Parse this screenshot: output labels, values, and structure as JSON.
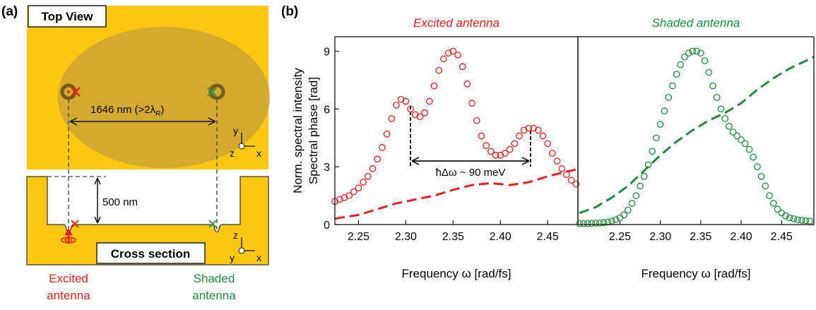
{
  "panel_labels": [
    "(a)",
    "(b)"
  ],
  "diagram": {
    "top_view": "Top View",
    "distance": [
      "1646 nm (>2λ",
      "R",
      ")"
    ],
    "depth": "500 nm",
    "cross_section": "Cross section",
    "axes_top": [
      "y",
      "z",
      "x"
    ],
    "axes_bottom": [
      "z",
      "y",
      "x"
    ],
    "excited": [
      "Excited",
      "antenna"
    ],
    "shaded": [
      "Shaded",
      "antenna"
    ]
  },
  "chart_data": [
    {
      "type": "scatter-line",
      "title": "Excited antenna",
      "title_color": "#e8201e",
      "x_label": "Frequency ω [rad/fs]",
      "y_label": [
        "Norm. spectral intensity",
        "Spectral phase [rad]"
      ],
      "annotation": "ħΔω ~ 90 meV",
      "xlim": [
        2.225,
        2.482
      ],
      "ylim": [
        0,
        9.75
      ],
      "xticks": [
        2.25,
        {
          "value": 2.3,
          "label": "2.30"
        },
        2.35,
        {
          "value": 2.4,
          "label": "2.40"
        },
        2.45
      ],
      "yticks": [
        0,
        3,
        6,
        9
      ],
      "series": [
        {
          "style": "markers",
          "color": "#e8201e",
          "x": [
            2.225,
            2.23,
            2.235,
            2.24,
            2.245,
            2.25,
            2.255,
            2.26,
            2.265,
            2.27,
            2.275,
            2.28,
            2.285,
            2.29,
            2.295,
            2.3,
            2.305,
            2.31,
            2.315,
            2.32,
            2.325,
            2.33,
            2.335,
            2.34,
            2.345,
            2.35,
            2.355,
            2.36,
            2.365,
            2.37,
            2.375,
            2.38,
            2.385,
            2.39,
            2.395,
            2.4,
            2.405,
            2.41,
            2.415,
            2.42,
            2.425,
            2.43,
            2.435,
            2.44,
            2.445,
            2.45,
            2.455,
            2.46,
            2.465,
            2.47,
            2.475,
            2.48
          ],
          "values": [
            1.2,
            1.3,
            1.4,
            1.5,
            1.7,
            1.9,
            2.2,
            2.5,
            2.9,
            3.4,
            4.0,
            4.7,
            5.5,
            6.2,
            6.5,
            6.4,
            6.0,
            5.7,
            5.6,
            5.8,
            6.4,
            7.2,
            8.0,
            8.6,
            8.9,
            9.0,
            8.8,
            8.2,
            7.3,
            6.3,
            5.4,
            4.6,
            4.1,
            3.8,
            3.6,
            3.6,
            3.7,
            3.9,
            4.2,
            4.6,
            4.9,
            5.0,
            5.0,
            4.9,
            4.6,
            4.2,
            3.7,
            3.3,
            2.9,
            2.6,
            2.3,
            2.1
          ]
        },
        {
          "style": "dashed",
          "color": "#e8201e",
          "x": [
            2.225,
            2.23,
            2.25,
            2.27,
            2.29,
            2.31,
            2.33,
            2.35,
            2.37,
            2.39,
            2.41,
            2.43,
            2.45,
            2.47,
            2.48
          ],
          "values": [
            0.3,
            0.35,
            0.5,
            0.8,
            1.1,
            1.3,
            1.5,
            1.8,
            2.05,
            2.15,
            2.05,
            2.2,
            2.5,
            2.75,
            2.85
          ]
        }
      ]
    },
    {
      "type": "scatter-line",
      "title": "Shaded antenna",
      "title_color": "#1e8c3a",
      "x_label": "Frequency ω [rad/fs]",
      "xlim": [
        2.198,
        2.49
      ],
      "ylim": [
        0,
        9.75
      ],
      "xticks": [
        2.25,
        {
          "value": 2.3,
          "label": "2.30"
        },
        2.35,
        {
          "value": 2.4,
          "label": "2.40"
        },
        2.45
      ],
      "series": [
        {
          "style": "markers",
          "color": "#1e8c3a",
          "x": [
            2.2,
            2.205,
            2.21,
            2.215,
            2.22,
            2.225,
            2.23,
            2.235,
            2.24,
            2.245,
            2.25,
            2.255,
            2.26,
            2.265,
            2.27,
            2.275,
            2.28,
            2.285,
            2.29,
            2.295,
            2.3,
            2.305,
            2.31,
            2.315,
            2.32,
            2.325,
            2.33,
            2.335,
            2.34,
            2.345,
            2.35,
            2.355,
            2.36,
            2.365,
            2.37,
            2.375,
            2.38,
            2.385,
            2.39,
            2.395,
            2.4,
            2.405,
            2.41,
            2.415,
            2.42,
            2.425,
            2.43,
            2.435,
            2.44,
            2.445,
            2.45,
            2.455,
            2.46,
            2.465,
            2.47,
            2.475,
            2.48,
            2.485
          ],
          "values": [
            0.05,
            0.05,
            0.05,
            0.06,
            0.07,
            0.08,
            0.1,
            0.13,
            0.18,
            0.25,
            0.35,
            0.5,
            0.75,
            1.1,
            1.5,
            2.0,
            2.5,
            3.1,
            3.8,
            4.5,
            5.2,
            5.9,
            6.6,
            7.2,
            7.8,
            8.3,
            8.7,
            8.9,
            9.0,
            9.0,
            8.9,
            8.5,
            7.9,
            7.2,
            6.6,
            6.0,
            5.5,
            5.1,
            4.8,
            4.6,
            4.4,
            4.2,
            3.9,
            3.5,
            3.0,
            2.5,
            2.0,
            1.5,
            1.1,
            0.8,
            0.6,
            0.45,
            0.35,
            0.3,
            0.25,
            0.22,
            0.2,
            0.18
          ]
        },
        {
          "style": "dashed",
          "color": "#1e8c3a",
          "x": [
            2.2,
            2.22,
            2.24,
            2.26,
            2.28,
            2.3,
            2.32,
            2.34,
            2.36,
            2.38,
            2.4,
            2.42,
            2.44,
            2.46,
            2.48,
            2.49
          ],
          "values": [
            0.6,
            0.9,
            1.4,
            2.0,
            2.8,
            3.6,
            4.3,
            4.9,
            5.4,
            5.8,
            6.3,
            7.0,
            7.6,
            8.1,
            8.5,
            8.7
          ]
        }
      ]
    }
  ]
}
